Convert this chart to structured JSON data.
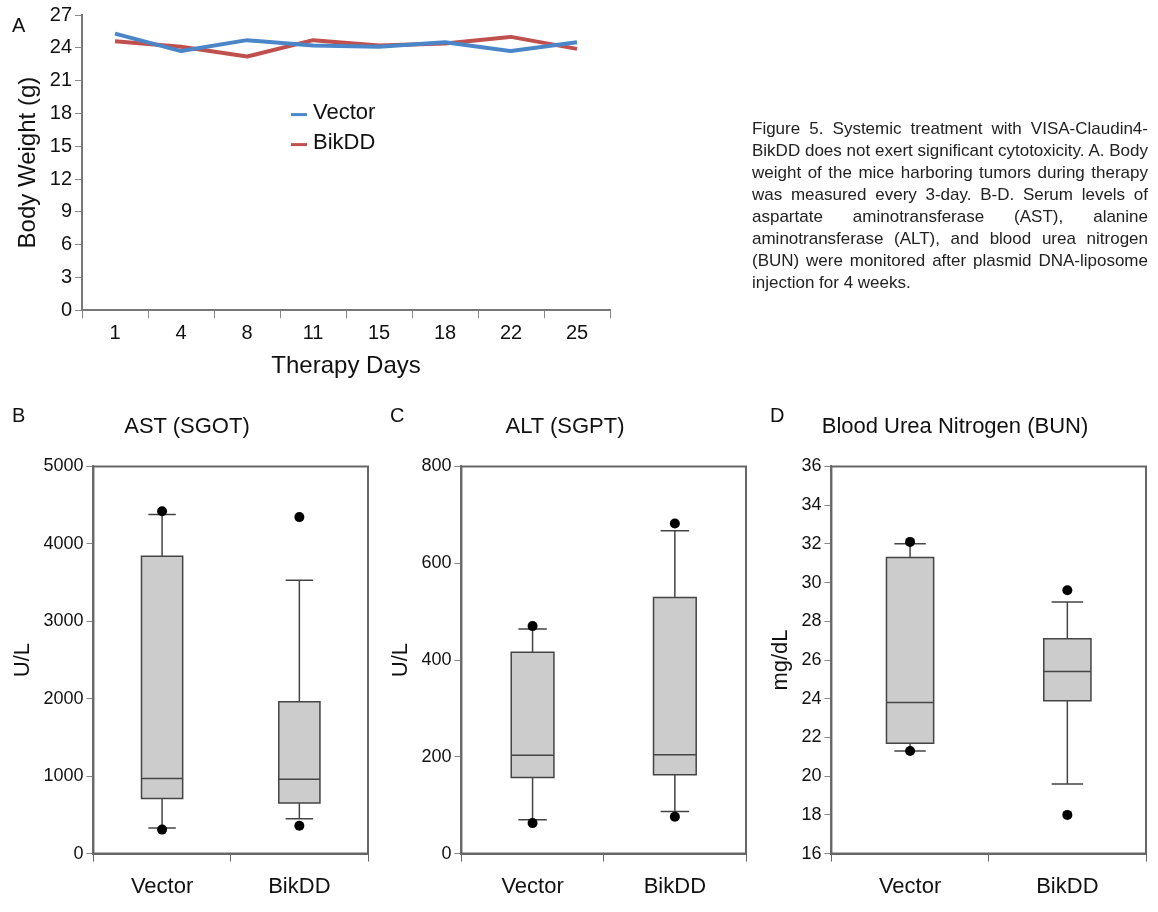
{
  "chart_data": [
    {
      "type": "line",
      "xlabel": "Therapy Days",
      "ylabel": "Body Weight (g)",
      "categories": [
        "1",
        "4",
        "8",
        "11",
        "15",
        "18",
        "22",
        "25"
      ],
      "series": [
        {
          "name": "Vector",
          "color": "#4a86c8",
          "values": [
            25.3,
            23.7,
            24.7,
            24.2,
            24.1,
            24.5,
            23.7,
            24.5
          ]
        },
        {
          "name": "BikDD",
          "color": "#c0504d",
          "values": [
            24.6,
            24.1,
            23.2,
            24.7,
            24.2,
            24.4,
            25.0,
            23.9
          ]
        }
      ],
      "ylim": [
        0,
        27
      ],
      "yticks": [
        0,
        3,
        6,
        9,
        12,
        15,
        18,
        21,
        24,
        27
      ],
      "legend": "center",
      "marker": "none",
      "annotations": [
        "A",
        "Figure 5. Systemic treatment with VISA-Claudin4-BikDD does not exert significant cytotoxicity. A. Body weight of the mice harboring tumors during therapy was measured every 3-day. B-D. Serum levels of aspartate aminotransferase (AST), alanine aminotransferase (ALT), and blood urea nitrogen (BUN) were monitored after plasmid DNA-liposome injection for 4 weeks."
      ]
    },
    {
      "type": "box",
      "title": "AST (SGOT)",
      "ylabel": "U/L",
      "categories": [
        "Vector",
        "BikDD"
      ],
      "color": "#cccccc",
      "boxes": [
        {
          "low": 330,
          "q1": 710,
          "median": 970,
          "q3": 3840,
          "high": 4380,
          "outliers": [
            4420,
            310
          ]
        },
        {
          "low": 450,
          "q1": 655,
          "median": 960,
          "q3": 1960,
          "high": 3530,
          "outliers": [
            4345,
            360
          ]
        }
      ],
      "ylim": [
        0,
        5000
      ],
      "yticks": [
        0,
        1000,
        2000,
        3000,
        4000,
        5000
      ],
      "annotations": [
        "B"
      ]
    },
    {
      "type": "box",
      "title": "ALT (SGPT)",
      "ylabel": "U/L",
      "categories": [
        "Vector",
        "BikDD"
      ],
      "color": "#cccccc",
      "boxes": [
        {
          "low": 70,
          "q1": 157,
          "median": 203,
          "q3": 416,
          "high": 464,
          "outliers": [
            470,
            63
          ]
        },
        {
          "low": 87,
          "q1": 163,
          "median": 204,
          "q3": 529,
          "high": 667,
          "outliers": [
            682,
            76
          ]
        }
      ],
      "ylim": [
        0,
        800
      ],
      "yticks": [
        0,
        200,
        400,
        600,
        800
      ],
      "annotations": [
        "C"
      ]
    },
    {
      "type": "box",
      "title": "Blood Urea Nitrogen (BUN)",
      "ylabel": "mg/dL",
      "categories": [
        "Vector",
        "BikDD"
      ],
      "color": "#cccccc",
      "boxes": [
        {
          "low": 21.3,
          "q1": 21.7,
          "median": 23.8,
          "q3": 31.3,
          "high": 32.0,
          "outliers": [
            32.1,
            21.3
          ]
        },
        {
          "low": 19.6,
          "q1": 23.9,
          "median": 25.4,
          "q3": 27.1,
          "high": 29.0,
          "outliers": [
            29.6,
            18.0
          ]
        }
      ],
      "ylim": [
        16,
        36
      ],
      "yticks": [
        16,
        18,
        20,
        22,
        24,
        26,
        28,
        30,
        32,
        34,
        36
      ],
      "annotations": [
        "D"
      ]
    }
  ]
}
